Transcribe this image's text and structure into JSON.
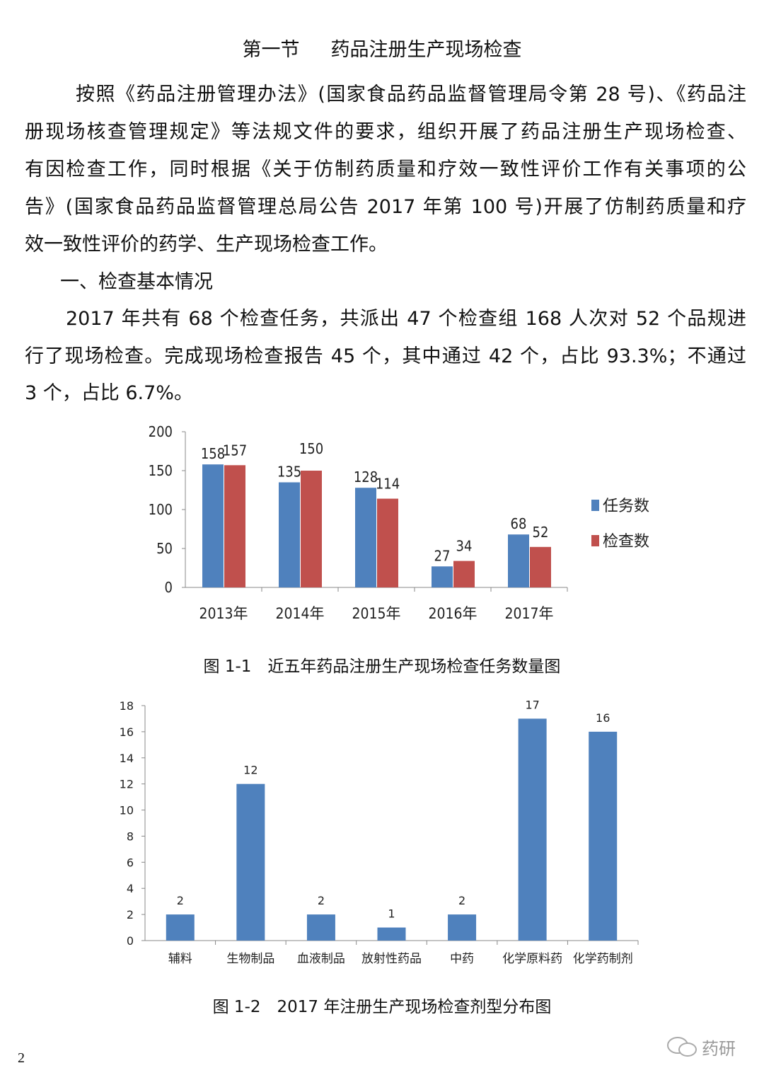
{
  "section_heading": {
    "number": "第一节",
    "title": "药品注册生产现场检查"
  },
  "paragraphs": [
    [
      "按照《药品注册管理办法》(国家食品药品监督管理局令第 28 号)、《药品注",
      "册现场核查管理规定》等法规文件的要求，组织开展了药品注册生产现场检查、",
      "有因检查工作，同时根据《关于仿制药质量和疗效一致性评价工作有关事项的公",
      "告》(国家食品药品监督管理总局公告 2017 年第 100 号)开展了仿制药质量和疗",
      "效一致性评价的药学、生产现场检查工作。"
    ],
    [
      "一、检查基本情况"
    ],
    [
      "2017 年共有 68 个检查任务，共派出 47 个检查组 168 人次对 52 个品规进",
      "行了现场检查。完成现场检查报告 45 个，其中通过 42 个，占比 93.3%；不通过",
      "3 个，占比 6.7%。"
    ]
  ],
  "chart_data": [
    {
      "type": "bar",
      "categories": [
        "2013年",
        "2014年",
        "2015年",
        "2016年",
        "2017年"
      ],
      "series": [
        {
          "name": "任务数",
          "values": [
            158,
            135,
            128,
            27,
            68
          ],
          "color": "#4F81BD"
        },
        {
          "name": "检查数",
          "values": [
            157,
            150,
            114,
            34,
            52
          ],
          "color": "#C0504D"
        }
      ],
      "ylim": [
        0,
        200
      ],
      "yticks": [
        0,
        50,
        100,
        150,
        200
      ],
      "grid": false,
      "legend": "right",
      "caption": "图 1-1　近五年药品注册生产现场检查任务数量图"
    },
    {
      "type": "bar",
      "categories": [
        "辅料",
        "生物制品",
        "血液制品",
        "放射性药品",
        "中药",
        "化学原料药",
        "化学药制剂"
      ],
      "values": [
        2,
        12,
        2,
        1,
        2,
        17,
        16
      ],
      "color": "#4F81BD",
      "ylim": [
        0,
        18
      ],
      "yticks": [
        0,
        2,
        4,
        6,
        8,
        10,
        12,
        14,
        16,
        18
      ],
      "grid": false,
      "caption": "图 1-2　2017 年注册生产现场检查剂型分布图"
    }
  ],
  "page_number": "2",
  "watermark": {
    "icon": "wechat-icon",
    "text": "药研"
  }
}
